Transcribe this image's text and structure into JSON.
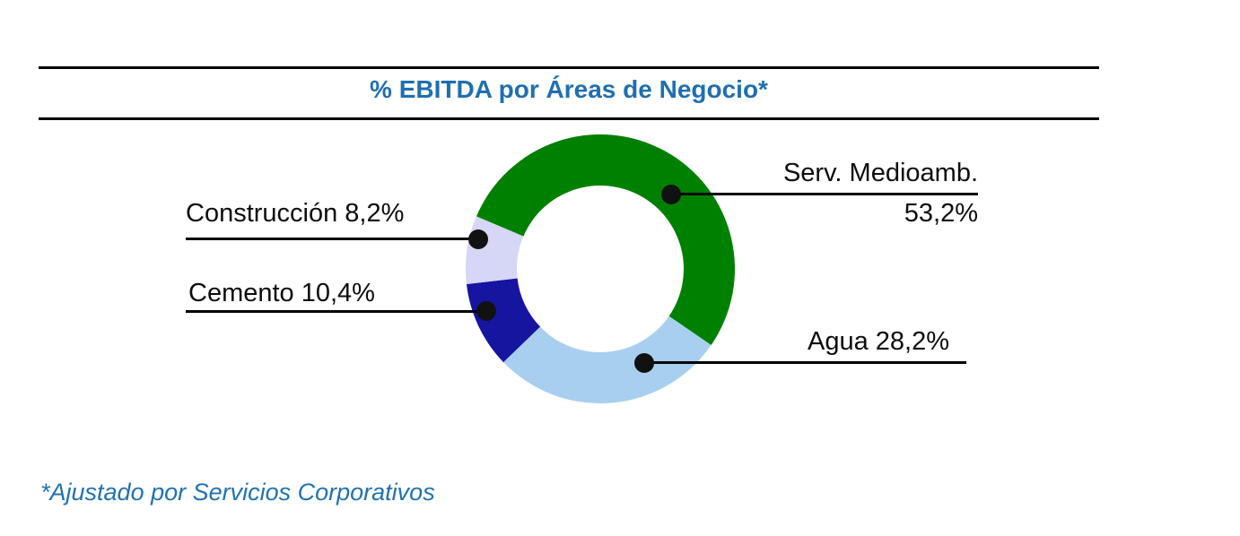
{
  "title": "% EBITDA por Áreas de Negocio*",
  "footnote": "*Ajustado por Servicios Corporativos",
  "colors": {
    "title_text": "#1F6FB0",
    "footnote_text": "#2272B0",
    "rule_and_leader_lines": "#000000",
    "label_text": "#0d0d0d",
    "background": "#ffffff"
  },
  "chart_data": {
    "type": "pie",
    "subtype": "donut",
    "title": "% EBITDA por Áreas de Negocio*",
    "categories": [
      "Serv. Medioamb.",
      "Agua",
      "Cemento",
      "Construcción"
    ],
    "values": [
      53.2,
      28.2,
      10.4,
      8.2
    ],
    "value_labels": [
      "53,2%",
      "28,2%",
      "10,4%",
      "8,2%"
    ],
    "colors": [
      "#008000",
      "#A8CFEF",
      "#1515A0",
      "#D6D6F6"
    ],
    "start_angle_deg": -67,
    "inner_radius_ratio": 0.62,
    "legend": "none",
    "labels_style": "external-callouts-with-dots",
    "footnote": "*Ajustado por Servicios Corporativos"
  },
  "callouts": {
    "serv": {
      "line1": "Serv. Medioamb.",
      "line2": "53,2%"
    },
    "agua": {
      "text": "Agua 28,2%"
    },
    "cemento": {
      "text": "Cemento 10,4%"
    },
    "construccion": {
      "text": "Construcción 8,2%"
    }
  }
}
